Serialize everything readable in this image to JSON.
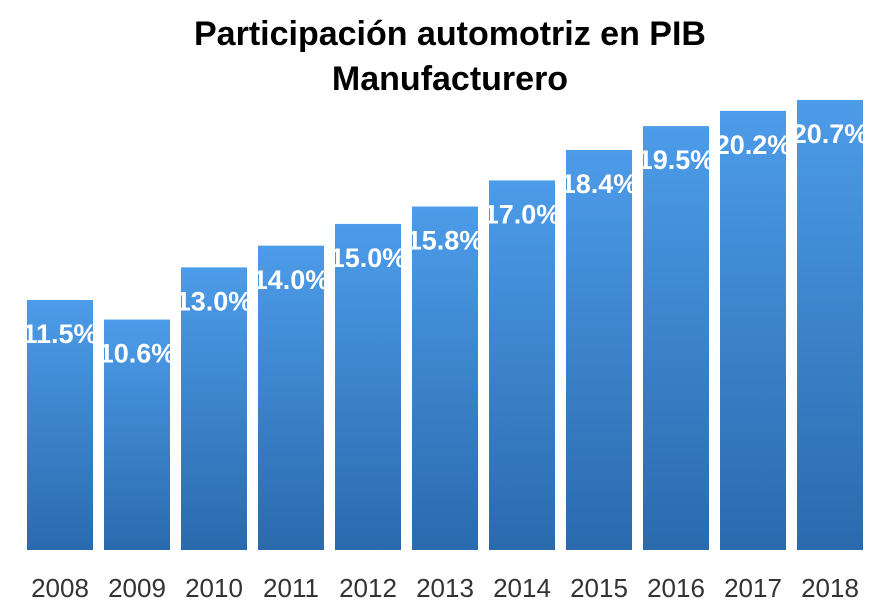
{
  "chart_data": {
    "type": "bar",
    "title": "Participación automotriz en PIB Manufacturero",
    "categories": [
      "2008",
      "2009",
      "2010",
      "2011",
      "2012",
      "2013",
      "2014",
      "2015",
      "2016",
      "2017",
      "2018"
    ],
    "values": [
      11.5,
      10.6,
      13.0,
      14.0,
      15.0,
      15.8,
      17.0,
      18.4,
      19.5,
      20.2,
      20.7
    ],
    "value_labels": [
      "11.5%",
      "10.6%",
      "13.0%",
      "14.0%",
      "15.0%",
      "15.8%",
      "17.0%",
      "18.4%",
      "19.5%",
      "20.2%",
      "20.7%"
    ],
    "color": "#3b86d6"
  }
}
